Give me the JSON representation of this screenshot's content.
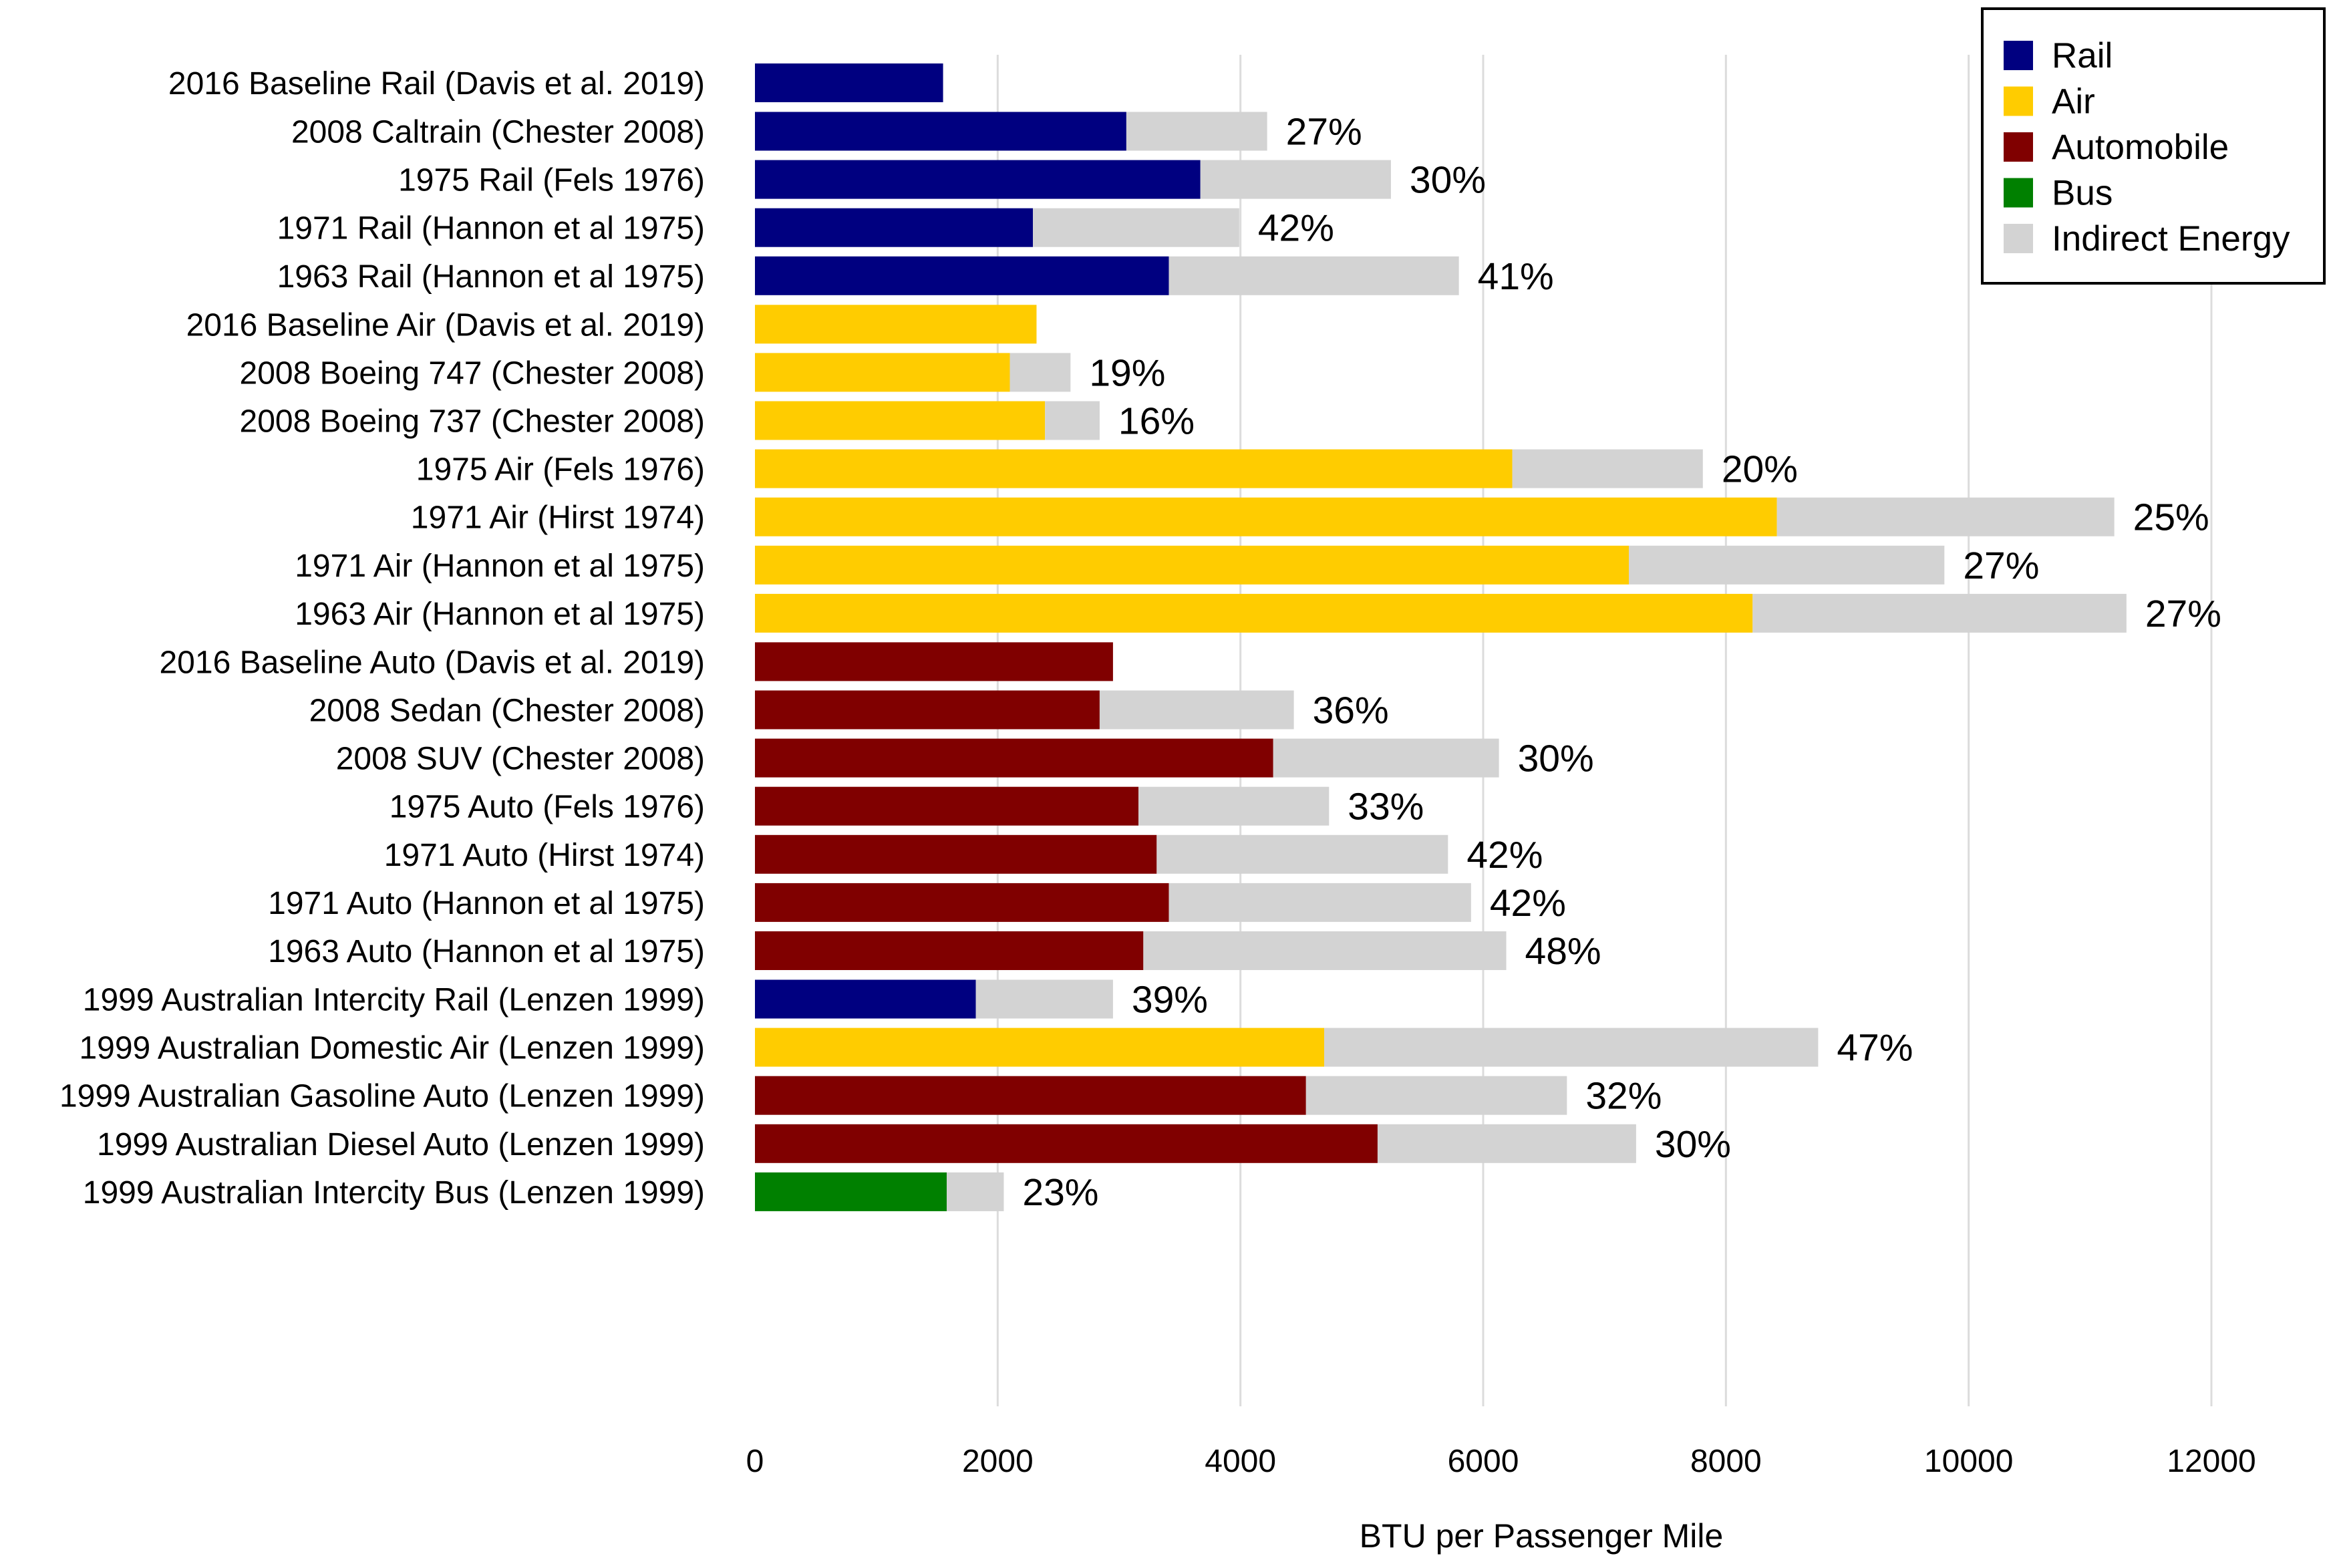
{
  "chart_data": {
    "type": "bar",
    "orientation": "horizontal",
    "stacked": true,
    "xlabel": "BTU per Passenger Mile",
    "xlim": [
      0,
      12000
    ],
    "xticks": [
      0,
      2000,
      4000,
      6000,
      8000,
      10000,
      12000
    ],
    "grid": "vertical",
    "legend_position": "top-right",
    "colors": {
      "Rail": "#000080",
      "Air": "#ffcc00",
      "Automobile": "#800000",
      "Bus": "#008000",
      "Indirect Energy": "#d3d3d3"
    },
    "legend": [
      "Rail",
      "Air",
      "Automobile",
      "Bus",
      "Indirect Energy"
    ],
    "groups": [
      {
        "rows": [
          {
            "label": "2016 Baseline Rail (Davis et al. 2019)",
            "mode": "Rail",
            "direct": 1550,
            "total": 1550,
            "indirect_pct": ""
          }
        ]
      },
      {
        "rows": [
          {
            "label": "2008 Caltrain (Chester 2008)",
            "mode": "Rail",
            "direct": 3060,
            "total": 4220,
            "indirect_pct": "27%"
          },
          {
            "label": "1975 Rail (Fels 1976)",
            "mode": "Rail",
            "direct": 3670,
            "total": 5240,
            "indirect_pct": "30%"
          },
          {
            "label": "1971 Rail (Hannon et al 1975)",
            "mode": "Rail",
            "direct": 2290,
            "total": 3990,
            "indirect_pct": "42%"
          },
          {
            "label": "1963 Rail (Hannon et al 1975)",
            "mode": "Rail",
            "direct": 3410,
            "total": 5800,
            "indirect_pct": "41%"
          }
        ]
      },
      {
        "rows": [
          {
            "label": "2016 Baseline Air (Davis et al. 2019)",
            "mode": "Air",
            "direct": 2320,
            "total": 2320,
            "indirect_pct": ""
          },
          {
            "label": "2008 Boeing 747 (Chester 2008)",
            "mode": "Air",
            "direct": 2100,
            "total": 2600,
            "indirect_pct": "19%"
          },
          {
            "label": "2008 Boeing 737 (Chester 2008)",
            "mode": "Air",
            "direct": 2390,
            "total": 2840,
            "indirect_pct": "16%"
          },
          {
            "label": "1975 Air (Fels 1976)",
            "mode": "Air",
            "direct": 6240,
            "total": 7810,
            "indirect_pct": "20%"
          },
          {
            "label": "1971 Air (Hirst 1974)",
            "mode": "Air",
            "direct": 8420,
            "total": 11200,
            "indirect_pct": "25%"
          },
          {
            "label": "1971 Air (Hannon et al 1975)",
            "mode": "Air",
            "direct": 7200,
            "total": 9800,
            "indirect_pct": "27%"
          },
          {
            "label": "1963 Air (Hannon et al 1975)",
            "mode": "Air",
            "direct": 8220,
            "total": 11300,
            "indirect_pct": "27%"
          }
        ]
      },
      {
        "rows": [
          {
            "label": "2016 Baseline Auto (Davis et al. 2019)",
            "mode": "Automobile",
            "direct": 2950,
            "total": 2950,
            "indirect_pct": ""
          },
          {
            "label": "2008 Sedan (Chester 2008)",
            "mode": "Automobile",
            "direct": 2840,
            "total": 4440,
            "indirect_pct": "36%"
          },
          {
            "label": "2008 SUV (Chester 2008)",
            "mode": "Automobile",
            "direct": 4270,
            "total": 6130,
            "indirect_pct": "30%"
          },
          {
            "label": "1975 Auto (Fels 1976)",
            "mode": "Automobile",
            "direct": 3160,
            "total": 4730,
            "indirect_pct": "33%"
          },
          {
            "label": "1971 Auto (Hirst 1974)",
            "mode": "Automobile",
            "direct": 3310,
            "total": 5710,
            "indirect_pct": "42%"
          },
          {
            "label": "1971 Auto (Hannon et al 1975)",
            "mode": "Automobile",
            "direct": 3410,
            "total": 5900,
            "indirect_pct": "42%"
          },
          {
            "label": "1963 Auto (Hannon et al 1975)",
            "mode": "Automobile",
            "direct": 3200,
            "total": 6190,
            "indirect_pct": "48%"
          }
        ]
      },
      {
        "rows": [
          {
            "label": "1999 Australian Intercity Rail (Lenzen 1999)",
            "mode": "Rail",
            "direct": 1820,
            "total": 2950,
            "indirect_pct": "39%"
          },
          {
            "label": "1999 Australian Domestic Air (Lenzen 1999)",
            "mode": "Air",
            "direct": 4690,
            "total": 8760,
            "indirect_pct": "47%"
          },
          {
            "label": "1999 Australian Gasoline Auto (Lenzen 1999)",
            "mode": "Automobile",
            "direct": 4540,
            "total": 6690,
            "indirect_pct": "32%"
          },
          {
            "label": "1999 Australian Diesel Auto (Lenzen 1999)",
            "mode": "Automobile",
            "direct": 5130,
            "total": 7260,
            "indirect_pct": "30%"
          },
          {
            "label": "1999 Australian Intercity Bus (Lenzen 1999)",
            "mode": "Bus",
            "direct": 1580,
            "total": 2050,
            "indirect_pct": "23%"
          }
        ]
      }
    ]
  }
}
